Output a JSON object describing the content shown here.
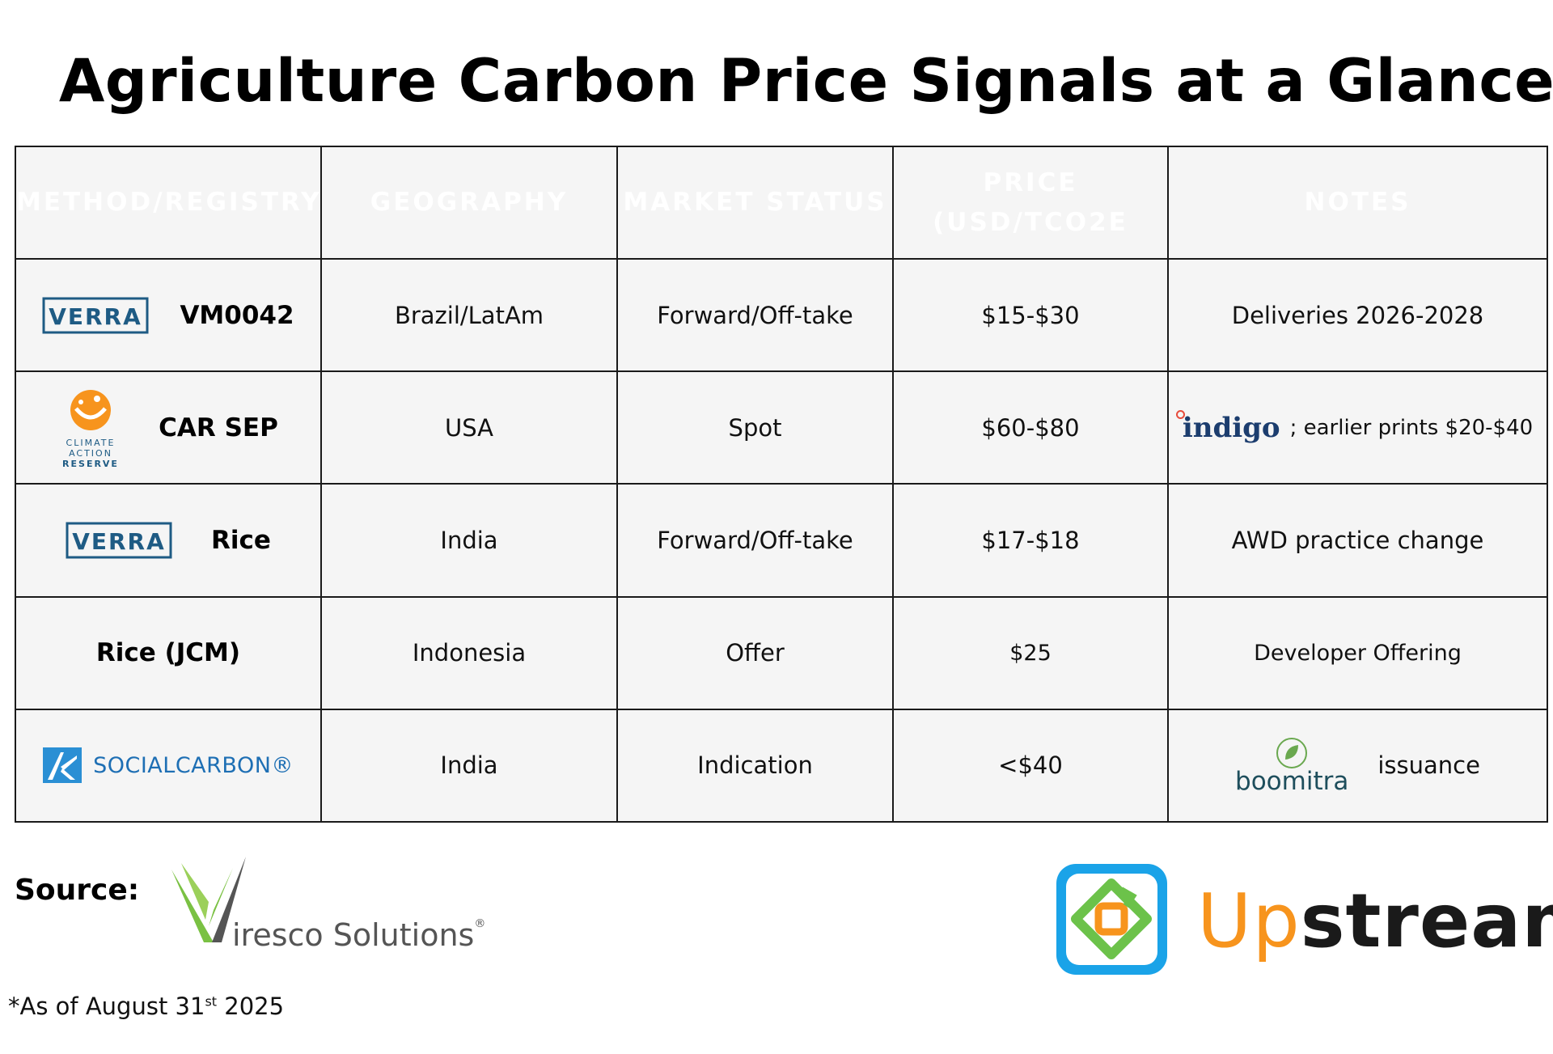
{
  "title": "Agriculture Carbon Price Signals at a Glance",
  "headers": {
    "method": "METHOD/REGISTRY",
    "geography": "GEOGRAPHY",
    "status": "MARKET STATUS",
    "price_line1": "PRICE",
    "price_line2": "(USD/TCO2E",
    "notes": "NOTES"
  },
  "header_colors": {
    "orange": "#ffbb59",
    "green": "#7ed957",
    "blue": "#38b6ff"
  },
  "rows": [
    {
      "logo": "VERRA",
      "method": "VM0042",
      "geography": "Brazil/LatAm",
      "status": "Forward/Off-take",
      "price": "$15-$30",
      "notes": "Deliveries 2026-2028"
    },
    {
      "logo": "climate-action-reserve-logo",
      "logo_text": [
        "CLIMATE",
        "ACTION",
        "RESERVE"
      ],
      "method": "CAR SEP",
      "geography": "USA",
      "status": "Spot",
      "price": "$60-$80",
      "notes_logo": "indigo",
      "notes": "; earlier prints $20-$40"
    },
    {
      "logo": "VERRA",
      "method": "Rice",
      "geography": "India",
      "status": "Forward/Off-take",
      "price": "$17-$18",
      "notes": "AWD practice change"
    },
    {
      "method": "Rice (JCM)",
      "geography": "Indonesia",
      "status": "Offer",
      "price": "$25",
      "notes": "Developer Offering"
    },
    {
      "logo": "SOCIALCARBON®",
      "geography": "India",
      "status": "Indication",
      "price": "<$40",
      "notes_logo": "boomitra",
      "notes": "issuance"
    }
  ],
  "footer": {
    "source_label": "Source:",
    "viresco": "iresco Solutions",
    "viresco_reg": "®",
    "upstream_up": "Up",
    "upstream_rest": "stream",
    "asof_prefix": "*As of August 31",
    "asof_sup": "st",
    "asof_suffix": " 2025"
  },
  "brand_colors": {
    "verra": "#1e5b84",
    "socialcarbon": "#1e6fb4",
    "upstream_orange": "#f7941d",
    "upstream_icon": "#1aa3e8",
    "viresco_green": "#7ac143"
  }
}
